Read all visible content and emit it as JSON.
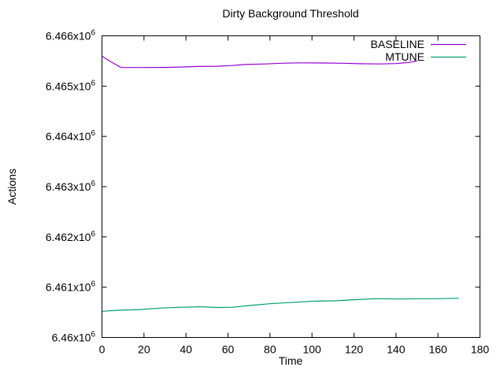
{
  "chart_data": {
    "type": "line",
    "title": "Dirty Background Threshold",
    "xlabel": "Time",
    "ylabel": "Actions",
    "xlim": [
      0,
      180
    ],
    "ylim": [
      6460000,
      6466000
    ],
    "x_ticks": [
      0,
      20,
      40,
      60,
      80,
      100,
      120,
      140,
      160,
      180
    ],
    "x_tick_labels": [
      "0",
      "20",
      "40",
      "60",
      "80",
      "100",
      "120",
      "140",
      "160",
      "180"
    ],
    "y_ticks": [
      6460000,
      6461000,
      6462000,
      6463000,
      6464000,
      6465000,
      6466000
    ],
    "y_tick_labels": [
      "6.46x10^6",
      "6.461x10^6",
      "6.462x10^6",
      "6.463x10^6",
      "6.464x10^6",
      "6.465x10^6",
      "6.466x10^6"
    ],
    "grid": false,
    "background_color": "#ffffff",
    "axis_color": "#000000",
    "legend": {
      "position": "top-right-inside",
      "entries": [
        {
          "label": "BASELINE",
          "color": "#9400d3"
        },
        {
          "label": "MTUNE",
          "color": "#009e73"
        }
      ]
    },
    "series": [
      {
        "name": "BASELINE",
        "color": "#9400d3",
        "x": [
          0,
          4,
          9,
          15,
          20,
          30,
          38,
          45,
          55,
          62,
          68,
          78,
          85,
          95,
          105,
          115,
          122,
          132,
          140,
          146,
          150
        ],
        "y": [
          6465595,
          6465490,
          6465370,
          6465370,
          6465370,
          6465372,
          6465380,
          6465390,
          6465395,
          6465410,
          6465430,
          6465440,
          6465455,
          6465462,
          6465460,
          6465455,
          6465445,
          6465440,
          6465448,
          6465470,
          6465500
        ]
      },
      {
        "name": "MTUNE",
        "color": "#009e73",
        "x": [
          0,
          8,
          18,
          28,
          37,
          48,
          55,
          62,
          70,
          80,
          92,
          100,
          112,
          120,
          130,
          142,
          152,
          160,
          170
        ],
        "y": [
          6460520,
          6460540,
          6460555,
          6460585,
          6460600,
          6460610,
          6460595,
          6460600,
          6460635,
          6460670,
          6460700,
          6460720,
          6460730,
          6460750,
          6460770,
          6460765,
          6460770,
          6460770,
          6460780
        ]
      }
    ]
  }
}
